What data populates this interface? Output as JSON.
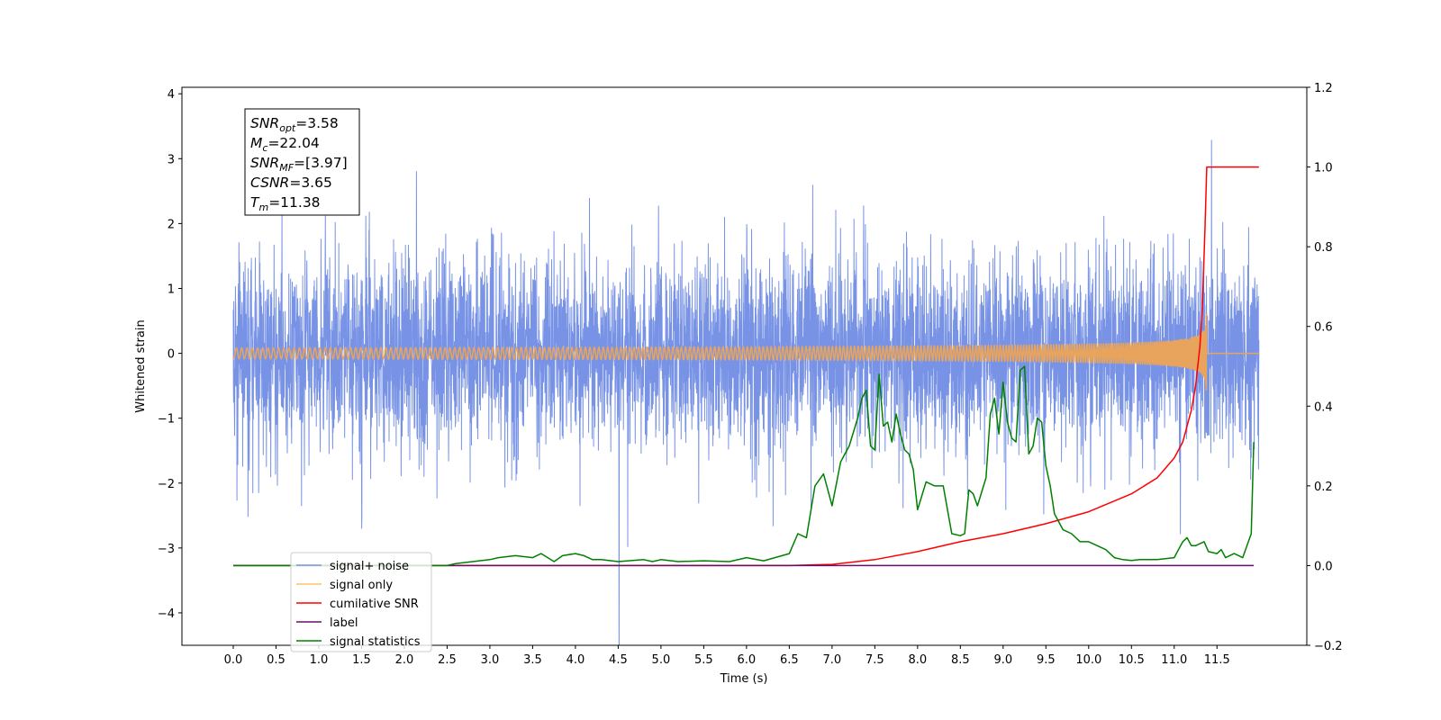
{
  "chart_data": {
    "type": "line",
    "xlabel": "Time (s)",
    "ylabel": "Whitened strain",
    "x_ticks": [
      "0.0",
      "0.5",
      "1.0",
      "1.5",
      "2.0",
      "2.5",
      "3.0",
      "3.5",
      "4.0",
      "4.5",
      "5.0",
      "5.5",
      "6.0",
      "6.5",
      "7.0",
      "7.5",
      "8.0",
      "8.5",
      "9.0",
      "9.5",
      "10.0",
      "10.5",
      "11.0",
      "11.5"
    ],
    "xlim": [
      -0.6,
      12.55
    ],
    "ylim_left": [
      -4.5,
      4.1
    ],
    "left_ticks": [
      "4",
      "3",
      "2",
      "1",
      "0",
      "−1",
      "−2",
      "−3",
      "−4"
    ],
    "ylim_right": [
      -0.2,
      1.2
    ],
    "right_ticks": [
      "1.2",
      "1.0",
      "0.8",
      "0.6",
      "0.4",
      "0.2",
      "0.0",
      "−0.2"
    ],
    "stats_box": [
      {
        "sym": "SNR",
        "sub": "opt",
        "value": "=3.58"
      },
      {
        "sym": "M",
        "sub": "c",
        "value": "=22.04"
      },
      {
        "sym": "SNR",
        "sub": "MF",
        "value": "=[3.97]"
      },
      {
        "sym": "CSNR",
        "sub": "",
        "value": "=3.65"
      },
      {
        "sym": "T",
        "sub": "m",
        "value": "=11.38"
      }
    ],
    "legend": [
      {
        "label": "signal+ noise",
        "color": "#7893e6"
      },
      {
        "label": "signal only",
        "color": "#ffc266"
      },
      {
        "label": "cumilative SNR",
        "color": "#ff0000"
      },
      {
        "label": "label",
        "color": "#6a0d6a"
      },
      {
        "label": "signal statistics",
        "color": "#008000"
      }
    ],
    "legend_placement": "lower-left",
    "series": [
      {
        "name": "signal+ noise",
        "axis": "left",
        "color": "#7893e6",
        "sigma": 0.72,
        "x_range": [
          0.0,
          11.99
        ]
      },
      {
        "name": "signal only",
        "axis": "left",
        "color": "#e8a45c",
        "merger_time": 11.38,
        "peak_amplitude": 0.62,
        "x_range": [
          0.0,
          11.99
        ]
      },
      {
        "name": "cumilative SNR",
        "axis": "right",
        "color": "#ff0000",
        "x": [
          0.0,
          6.5,
          7.0,
          7.5,
          8.0,
          8.5,
          9.0,
          9.5,
          10.0,
          10.5,
          10.8,
          11.0,
          11.1,
          11.2,
          11.25,
          11.3,
          11.33,
          11.36,
          11.38,
          11.99
        ],
        "y": [
          0.0,
          0.0,
          0.003,
          0.015,
          0.035,
          0.06,
          0.08,
          0.105,
          0.135,
          0.18,
          0.22,
          0.27,
          0.31,
          0.39,
          0.45,
          0.55,
          0.65,
          0.85,
          1.0,
          1.0
        ]
      },
      {
        "name": "label",
        "axis": "right",
        "color": "#6a0d6a",
        "x": [
          0.0,
          11.93
        ],
        "y": [
          0.0,
          0.0
        ]
      },
      {
        "name": "signal statistics",
        "axis": "right",
        "color": "#008000",
        "x": [
          0.0,
          2.5,
          2.6,
          2.8,
          3.0,
          3.1,
          3.3,
          3.5,
          3.6,
          3.75,
          3.85,
          4.0,
          4.1,
          4.2,
          4.3,
          4.5,
          4.8,
          4.9,
          5.0,
          5.2,
          5.5,
          5.8,
          6.0,
          6.2,
          6.5,
          6.6,
          6.7,
          6.8,
          6.9,
          7.0,
          7.1,
          7.15,
          7.2,
          7.3,
          7.35,
          7.4,
          7.45,
          7.5,
          7.55,
          7.6,
          7.65,
          7.7,
          7.75,
          7.8,
          7.85,
          7.9,
          7.95,
          8.0,
          8.1,
          8.2,
          8.3,
          8.4,
          8.5,
          8.55,
          8.6,
          8.65,
          8.7,
          8.8,
          8.85,
          8.9,
          8.95,
          9.0,
          9.05,
          9.1,
          9.15,
          9.2,
          9.25,
          9.3,
          9.35,
          9.4,
          9.45,
          9.5,
          9.55,
          9.6,
          9.7,
          9.8,
          9.9,
          10.0,
          10.1,
          10.2,
          10.3,
          10.4,
          10.5,
          10.6,
          10.8,
          11.0,
          11.05,
          11.1,
          11.15,
          11.2,
          11.25,
          11.3,
          11.35,
          11.4,
          11.5,
          11.55,
          11.6,
          11.7,
          11.8,
          11.9,
          11.93
        ],
        "y": [
          0.0,
          0.0,
          0.005,
          0.01,
          0.015,
          0.02,
          0.025,
          0.02,
          0.03,
          0.01,
          0.025,
          0.03,
          0.025,
          0.015,
          0.015,
          0.01,
          0.015,
          0.01,
          0.015,
          0.01,
          0.012,
          0.01,
          0.02,
          0.012,
          0.03,
          0.08,
          0.07,
          0.2,
          0.23,
          0.15,
          0.26,
          0.28,
          0.3,
          0.37,
          0.42,
          0.44,
          0.3,
          0.29,
          0.48,
          0.35,
          0.36,
          0.31,
          0.38,
          0.33,
          0.29,
          0.28,
          0.24,
          0.14,
          0.21,
          0.2,
          0.2,
          0.08,
          0.075,
          0.08,
          0.19,
          0.18,
          0.15,
          0.22,
          0.38,
          0.42,
          0.33,
          0.46,
          0.36,
          0.32,
          0.31,
          0.49,
          0.5,
          0.28,
          0.3,
          0.37,
          0.36,
          0.25,
          0.2,
          0.13,
          0.09,
          0.08,
          0.06,
          0.06,
          0.05,
          0.04,
          0.02,
          0.015,
          0.013,
          0.015,
          0.015,
          0.02,
          0.04,
          0.06,
          0.07,
          0.05,
          0.05,
          0.055,
          0.06,
          0.035,
          0.03,
          0.04,
          0.02,
          0.03,
          0.02,
          0.08,
          0.31
        ]
      }
    ]
  }
}
